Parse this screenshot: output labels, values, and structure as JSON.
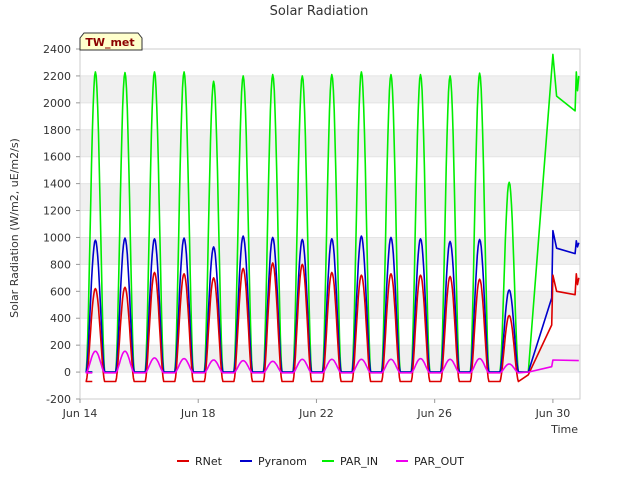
{
  "chart_data": {
    "type": "line",
    "title": "Solar Radiation",
    "xlabel": "Time",
    "ylabel": "Solar Radiation (W/m2, uE/m2/s)",
    "station_label": "TW_met",
    "xlim": [
      "2023-06-14",
      "2023-06-30T22:00"
    ],
    "ylim": [
      -200,
      2400
    ],
    "x_ticks": [
      {
        "date": "2023-06-14",
        "label": "Jun 14"
      },
      {
        "date": "2023-06-18",
        "label": "Jun 18"
      },
      {
        "date": "2023-06-22",
        "label": "Jun 22"
      },
      {
        "date": "2023-06-26",
        "label": "Jun 26"
      },
      {
        "date": "2023-06-30",
        "label": "Jun 30"
      }
    ],
    "y_ticks": [
      -200,
      0,
      200,
      400,
      600,
      800,
      1000,
      1200,
      1400,
      1600,
      1800,
      2000,
      2200,
      2400
    ],
    "grid": "horizontal bands",
    "legend_position": "bottom",
    "days": [
      "2023-06-14",
      "2023-06-15",
      "2023-06-16",
      "2023-06-17",
      "2023-06-18",
      "2023-06-19",
      "2023-06-20",
      "2023-06-21",
      "2023-06-22",
      "2023-06-23",
      "2023-06-24",
      "2023-06-25",
      "2023-06-26",
      "2023-06-27",
      "2023-06-28"
    ],
    "series": [
      {
        "name": "RNet",
        "color": "#dd0000",
        "daily_peak": [
          620,
          630,
          740,
          730,
          700,
          770,
          810,
          800,
          740,
          720,
          730,
          720,
          710,
          690,
          420
        ],
        "night_value": -70
      },
      {
        "name": "Pyranom",
        "color": "#0000cc",
        "daily_peak": [
          980,
          995,
          990,
          995,
          930,
          1010,
          1000,
          985,
          990,
          1010,
          1000,
          990,
          970,
          985,
          610
        ],
        "night_value": 0
      },
      {
        "name": "PAR_IN",
        "color": "#00ee00",
        "daily_peak": [
          2230,
          2225,
          2230,
          2230,
          2160,
          2200,
          2210,
          2200,
          2210,
          2230,
          2210,
          2210,
          2200,
          2220,
          1410
        ],
        "night_value": 0
      },
      {
        "name": "PAR_OUT",
        "color": "#ee00ee",
        "daily_peak": [
          155,
          155,
          105,
          100,
          90,
          85,
          80,
          95,
          95,
          95,
          95,
          100,
          95,
          100,
          60
        ],
        "night_value": -5
      }
    ],
    "gap_segments": [
      {
        "name": "RNet",
        "points": [
          [
            "2023-06-29T04:00",
            -20
          ],
          [
            "2023-06-29T23:00",
            350
          ],
          [
            "2023-06-30T00:00",
            720
          ],
          [
            "2023-06-30T03:00",
            600
          ],
          [
            "2023-06-30T18:00",
            575
          ],
          [
            "2023-06-30T19:00",
            730
          ],
          [
            "2023-06-30T20:00",
            650
          ],
          [
            "2023-06-30T21:00",
            700
          ]
        ]
      },
      {
        "name": "Pyranom",
        "points": [
          [
            "2023-06-29T04:00",
            0
          ],
          [
            "2023-06-29T23:00",
            550
          ],
          [
            "2023-06-30T00:00",
            1050
          ],
          [
            "2023-06-30T03:00",
            920
          ],
          [
            "2023-06-30T18:00",
            880
          ],
          [
            "2023-06-30T19:00",
            975
          ],
          [
            "2023-06-30T20:00",
            930
          ],
          [
            "2023-06-30T21:00",
            960
          ]
        ]
      },
      {
        "name": "PAR_IN",
        "points": [
          [
            "2023-06-29T04:00",
            0
          ],
          [
            "2023-06-30T00:00",
            2360
          ],
          [
            "2023-06-30T03:00",
            2050
          ],
          [
            "2023-06-30T18:00",
            1940
          ],
          [
            "2023-06-30T19:00",
            2230
          ],
          [
            "2023-06-30T20:00",
            2090
          ],
          [
            "2023-06-30T21:00",
            2200
          ]
        ]
      },
      {
        "name": "PAR_OUT",
        "points": [
          [
            "2023-06-29T04:00",
            0
          ],
          [
            "2023-06-29T23:00",
            40
          ],
          [
            "2023-06-30T00:00",
            90
          ],
          [
            "2023-06-30T21:00",
            85
          ]
        ]
      }
    ]
  }
}
